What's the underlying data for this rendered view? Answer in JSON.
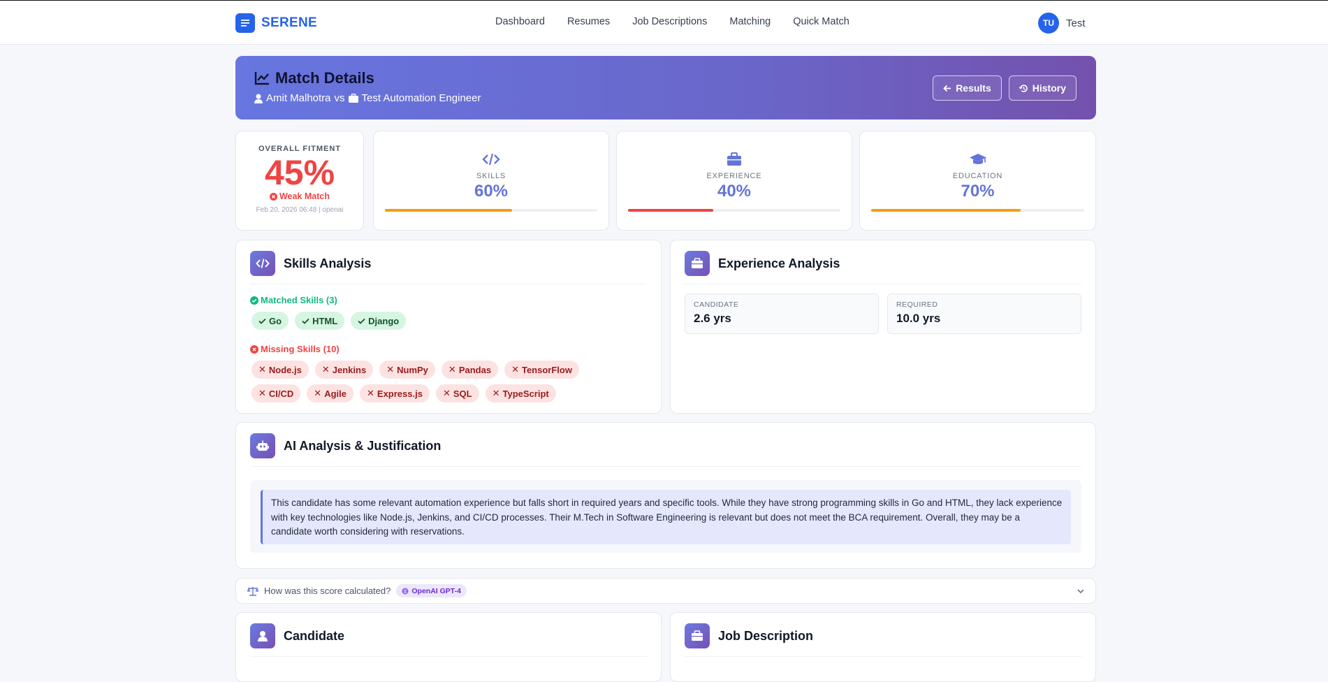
{
  "nav": {
    "brand": "SERENE",
    "links": [
      "Dashboard",
      "Resumes",
      "Job Descriptions",
      "Matching",
      "Quick Match"
    ],
    "user_initials": "TU",
    "user_name": "Test"
  },
  "hero": {
    "title": "Match Details",
    "candidate": "Amit Malhotra",
    "vs": "vs",
    "job": "Test Automation Engineer",
    "results_button": "Results",
    "history_button": "History"
  },
  "overall": {
    "label": "OVERALL FITMENT",
    "value": "45%",
    "percent": 45,
    "status": "Weak Match",
    "meta": "Feb 20, 2026 06:48 | openai"
  },
  "metrics": [
    {
      "label": "SKILLS",
      "value": "60%",
      "percent": 60,
      "color": "#f59e0b",
      "icon": "code-icon"
    },
    {
      "label": "EXPERIENCE",
      "value": "40%",
      "percent": 40,
      "color": "#ef4444",
      "icon": "briefcase-icon"
    },
    {
      "label": "EDUCATION",
      "value": "70%",
      "percent": 70,
      "color": "#f59e0b",
      "icon": "graduation-cap-icon"
    }
  ],
  "skills": {
    "title": "Skills Analysis",
    "matched_label": "Matched Skills (3)",
    "matched": [
      "Go",
      "HTML",
      "Django"
    ],
    "missing_label": "Missing Skills (10)",
    "missing": [
      "Node.js",
      "Jenkins",
      "NumPy",
      "Pandas",
      "TensorFlow",
      "CI/CD",
      "Agile",
      "Express.js",
      "SQL",
      "TypeScript"
    ]
  },
  "experience": {
    "title": "Experience Analysis",
    "candidate_label": "CANDIDATE",
    "candidate_value": "2.6 yrs",
    "required_label": "REQUIRED",
    "required_value": "10.0 yrs"
  },
  "ai": {
    "title": "AI Analysis & Justification",
    "text": "This candidate has some relevant automation experience but falls short in required years and specific tools. While they have strong programming skills in Go and HTML, they lack experience with key technologies like Node.js, Jenkins, and CI/CD processes. Their M.Tech in Software Engineering is relevant but does not meet the BCA requirement. Overall, they may be a candidate worth considering with reservations."
  },
  "calc": {
    "text": "How was this score calculated?",
    "badge": "OpenAI GPT-4"
  },
  "candidate_section": {
    "title": "Candidate"
  },
  "job_section": {
    "title": "Job Description"
  },
  "colors": {
    "primary": "#2563eb",
    "accent": "#6474d9",
    "danger": "#ef4444",
    "success": "#10b981",
    "warning": "#f59e0b"
  }
}
